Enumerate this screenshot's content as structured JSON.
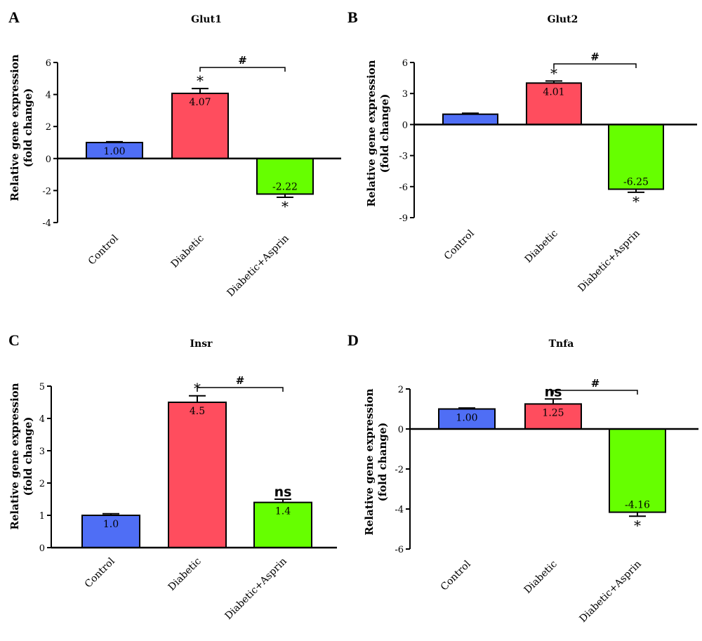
{
  "figure": {
    "panels": [
      "A",
      "B",
      "C",
      "D"
    ]
  },
  "chart_data": [
    {
      "type": "bar",
      "title": "Glut1",
      "ylabel": [
        "Relative gene expression",
        "(fold change)"
      ],
      "categories": [
        "Control",
        "Diabetic",
        "Diabetic+Asprin"
      ],
      "values": [
        1.0,
        4.07,
        -2.22
      ],
      "errors": [
        0.05,
        0.3,
        0.2
      ],
      "value_labels": [
        "1.00",
        "4.07",
        "-2.22"
      ],
      "significance": [
        "",
        "*",
        "*"
      ],
      "comparison": {
        "from": 1,
        "to": 2,
        "symbol": "#"
      },
      "ylim": [
        -4,
        6
      ],
      "yticks": [
        -4,
        -2,
        0,
        2,
        4,
        6
      ],
      "colors": [
        "#4f6ef5",
        "#ff4d5e",
        "#66ff00"
      ]
    },
    {
      "type": "bar",
      "title": "Glut2",
      "ylabel": [
        "Relative gene expression",
        "(fold change)"
      ],
      "categories": [
        "Control",
        "Diabetic",
        "Diabetic+Asprin"
      ],
      "values": [
        1.0,
        4.01,
        -6.25
      ],
      "errors": [
        0.1,
        0.2,
        0.3
      ],
      "value_labels": [
        "",
        "4.01",
        "-6.25"
      ],
      "significance": [
        "",
        "*",
        "*"
      ],
      "comparison": {
        "from": 1,
        "to": 2,
        "symbol": "#"
      },
      "ylim": [
        -10,
        6
      ],
      "yticks": [
        -9,
        -6,
        -3,
        0,
        3,
        6
      ],
      "colors": [
        "#4f6ef5",
        "#ff4d5e",
        "#66ff00"
      ]
    },
    {
      "type": "bar",
      "title": "Insr",
      "ylabel": [
        "Relative gene expression",
        "(fold change)"
      ],
      "categories": [
        "Control",
        "Diabetic",
        "Diabetic+Asprin"
      ],
      "values": [
        1.0,
        4.5,
        1.4
      ],
      "errors": [
        0.05,
        0.2,
        0.1
      ],
      "value_labels": [
        "1.0",
        "4.5",
        "1.4"
      ],
      "significance": [
        "",
        "*",
        "ns"
      ],
      "comparison": {
        "from": 1,
        "to": 2,
        "symbol": "#"
      },
      "ylim": [
        0,
        5
      ],
      "yticks": [
        0,
        1,
        2,
        3,
        4,
        5
      ],
      "colors": [
        "#4f6ef5",
        "#ff4d5e",
        "#66ff00"
      ]
    },
    {
      "type": "bar",
      "title": "Tnfa",
      "ylabel": [
        "Relative gene expression",
        "(fold change)"
      ],
      "categories": [
        "Control",
        "Diabetic",
        "Diabetic+Asprin"
      ],
      "values": [
        1.0,
        1.25,
        -4.16
      ],
      "errors": [
        0.05,
        0.25,
        0.2
      ],
      "value_labels": [
        "1.00",
        "1.25",
        "-4.16"
      ],
      "significance": [
        "",
        "ns",
        "*"
      ],
      "comparison": {
        "from": 1,
        "to": 2,
        "symbol": "#"
      },
      "ylim": [
        -6,
        2
      ],
      "yticks": [
        -6,
        -4,
        -2,
        0,
        2
      ],
      "colors": [
        "#4f6ef5",
        "#ff4d5e",
        "#66ff00"
      ]
    }
  ]
}
